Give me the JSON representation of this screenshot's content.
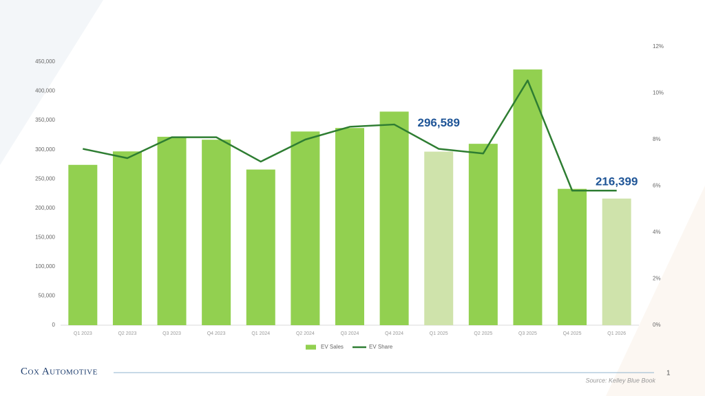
{
  "chart_data": {
    "type": "bar_line",
    "categories": [
      "Q1 2023",
      "Q2 2023",
      "Q3 2023",
      "Q4 2023",
      "Q1 2024",
      "Q2 2024",
      "Q3 2024",
      "Q4 2024",
      "Q1 2025",
      "Q2 2025",
      "Q3 2025",
      "Q4 2025",
      "Q1 2026"
    ],
    "series": [
      {
        "name": "EV Sales",
        "color": "#92d050",
        "colors": [
          "#92d050",
          "#92d050",
          "#92d050",
          "#92d050",
          "#92d050",
          "#92d050",
          "#92d050",
          "#92d050",
          "#cfe3ab",
          "#92d050",
          "#92d050",
          "#92d050",
          "#cfe3ab"
        ],
        "values": [
          274000,
          297000,
          322000,
          317000,
          266000,
          331000,
          337000,
          365000,
          296589,
          310000,
          437000,
          233000,
          216399
        ],
        "value_labels": [
          null,
          null,
          null,
          null,
          null,
          null,
          null,
          null,
          "296,589",
          null,
          null,
          null,
          "216,399"
        ]
      },
      {
        "name": "EV Share",
        "color": "#2e7d32",
        "axis": "y2",
        "values": [
          7.6,
          7.2,
          8.1,
          8.1,
          7.05,
          8.0,
          8.55,
          8.65,
          7.6,
          7.4,
          10.55,
          5.8,
          5.8
        ]
      }
    ],
    "ylim": [
      0,
      450000
    ],
    "yticks": [
      0,
      {
        "value": 50000,
        "label": "50,000"
      },
      {
        "value": 100000,
        "label": "100,000"
      },
      {
        "value": 150000,
        "label": "150,000"
      },
      {
        "value": 200000,
        "label": "200,000"
      },
      {
        "value": 250000,
        "label": "250,000"
      },
      {
        "value": 300000,
        "label": "300,000"
      },
      {
        "value": 350000,
        "label": "350,000"
      },
      {
        "value": 400000,
        "label": "400,000"
      },
      {
        "value": 450000,
        "label": "450,000"
      }
    ],
    "y2lim": [
      0,
      12
    ],
    "y2ticks": [
      {
        "value": 0,
        "label": "0%"
      },
      {
        "value": 2,
        "label": "2%"
      },
      {
        "value": 4,
        "label": "4%"
      },
      {
        "value": 6,
        "label": "6%"
      },
      {
        "value": 8,
        "label": "8%"
      },
      {
        "value": 10,
        "label": "10%"
      },
      {
        "value": 12,
        "label": "12%"
      }
    ],
    "grid": false,
    "legend": "bottom"
  },
  "logo": "Cox Automotive",
  "source": "Source: Kelley Blue Book",
  "page_number": "1"
}
